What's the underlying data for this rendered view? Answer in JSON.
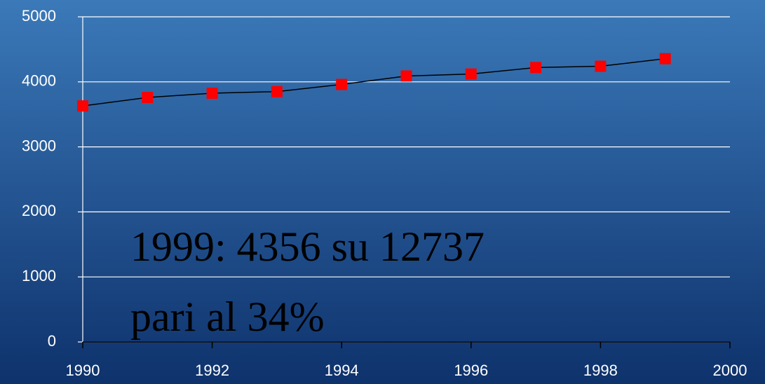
{
  "chart_data": {
    "type": "line",
    "x": [
      1990,
      1991,
      1992,
      1993,
      1994,
      1995,
      1996,
      1997,
      1998,
      1999
    ],
    "series": [
      {
        "color": "#ff0000",
        "line_color": "#000000",
        "values": [
          3630,
          3760,
          3825,
          3850,
          3960,
          4090,
          4120,
          4220,
          4240,
          4356
        ]
      }
    ],
    "xlim": [
      1990,
      2000
    ],
    "xticks": [
      1990,
      1992,
      1994,
      1996,
      1998,
      2000
    ],
    "ylim": [
      0,
      5000
    ],
    "yticks": [
      0,
      1000,
      2000,
      3000,
      4000,
      5000
    ],
    "grid": true,
    "annotations": [
      "1999: 4356 su 12737",
      "pari al 34%"
    ]
  }
}
